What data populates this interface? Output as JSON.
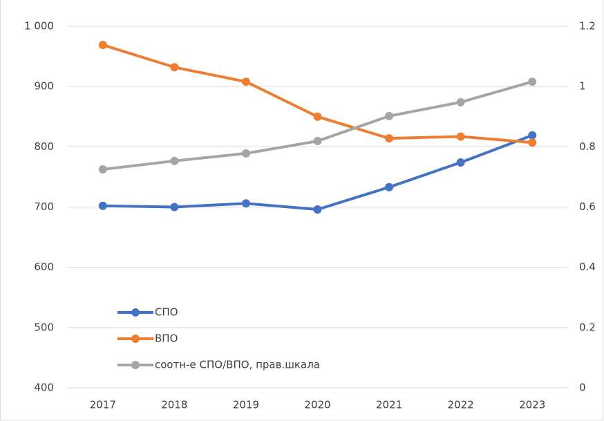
{
  "chart_data": {
    "type": "line",
    "categories": [
      "2017",
      "2018",
      "2019",
      "2020",
      "2021",
      "2022",
      "2023"
    ],
    "series": [
      {
        "name": "СПО",
        "color": "#4472c4",
        "values": [
          702,
          700,
          706,
          696,
          733,
          774,
          819
        ]
      },
      {
        "name": "ВПО",
        "color": "#ed7d31",
        "values": [
          969,
          932,
          908,
          850,
          814,
          817,
          807
        ]
      },
      {
        "name": "соотн-е СПО/ВПО, прав.шкала",
        "color": "#a5a5a5",
        "axis": "y2",
        "values": [
          0.725,
          0.753,
          0.778,
          0.819,
          0.902,
          0.948,
          1.016
        ]
      }
    ],
    "ylim": [
      400,
      1000
    ],
    "yticks": [
      400,
      500,
      600,
      700,
      800,
      900,
      {
        "value": 1000,
        "label": "1 000"
      }
    ],
    "y2lim": [
      0,
      1.2
    ],
    "y2ticks": [
      0,
      0.2,
      0.4,
      0.6,
      0.8,
      1,
      1.2
    ],
    "grid": true,
    "legend": "lower left"
  }
}
